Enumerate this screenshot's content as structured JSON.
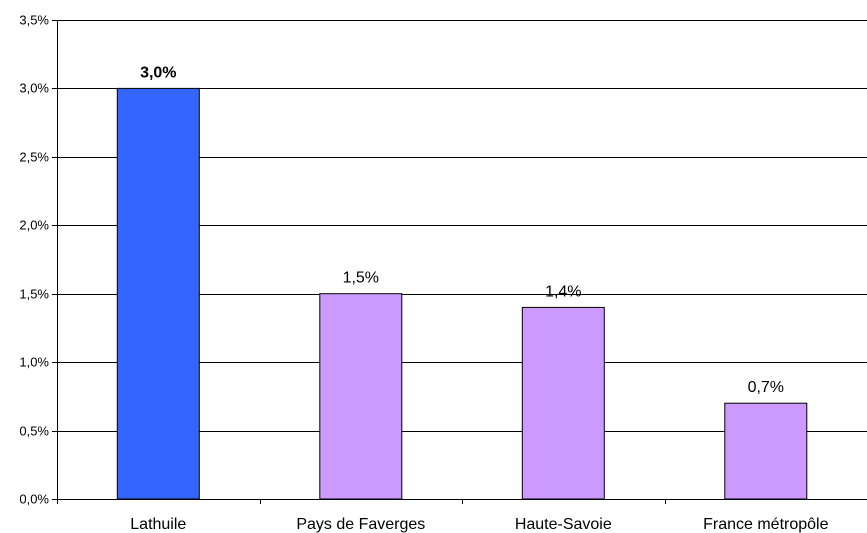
{
  "chart_data": {
    "type": "bar",
    "categories": [
      "Lathuile",
      "Pays de Faverges",
      "Haute-Savoie",
      "France métropôle"
    ],
    "values": [
      3.0,
      1.5,
      1.4,
      0.7
    ],
    "value_labels": [
      "3,0%",
      "1,5%",
      "1,4%",
      "0,7%"
    ],
    "highlight_index": 0,
    "ylim": [
      0,
      3.5
    ],
    "yticks": [
      0,
      0.5,
      1.0,
      1.5,
      2.0,
      2.5,
      3.0,
      3.5
    ],
    "ytick_labels": [
      "0,0%",
      "0,5%",
      "1,0%",
      "1,5%",
      "2,0%",
      "2,5%",
      "3,0%",
      "3,5%"
    ],
    "grid": true,
    "legend": "none",
    "colors": {
      "highlight": "#3366FF",
      "default": "#CC99FF",
      "grid": "#000000"
    }
  }
}
